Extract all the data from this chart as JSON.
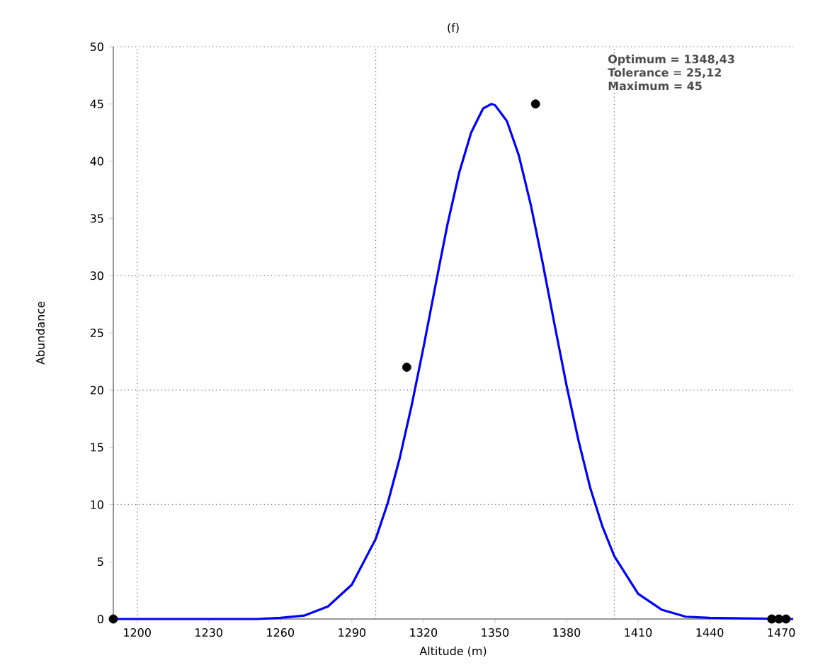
{
  "chart_data": {
    "type": "line",
    "title": "(f)",
    "xlabel": "Altitude (m)",
    "ylabel": "Abundance",
    "xlim": [
      1190,
      1475
    ],
    "ylim": [
      0,
      50
    ],
    "xticks": [
      1200,
      1230,
      1260,
      1290,
      1320,
      1350,
      1380,
      1410,
      1440,
      1470
    ],
    "yticks": [
      0,
      5,
      10,
      15,
      20,
      25,
      30,
      35,
      40,
      45,
      50
    ],
    "annotations": [
      "Optimum = 1348,43",
      "Tolerance = 25,12",
      "Maximum = 45"
    ],
    "ref_lines": [
      {
        "axis": "x",
        "value": 1200,
        "color": "#666666",
        "line_style": "dotted"
      },
      {
        "axis": "x",
        "value": 1300,
        "color": "#666666",
        "line_style": "dotted"
      },
      {
        "axis": "x",
        "value": 1400,
        "color": "#666666",
        "line_style": "dotted"
      },
      {
        "axis": "y",
        "value": 10,
        "color": "#666666",
        "line_style": "dotted"
      },
      {
        "axis": "y",
        "value": 20,
        "color": "#666666",
        "line_style": "dotted"
      },
      {
        "axis": "y",
        "value": 30,
        "color": "#666666",
        "line_style": "dotted"
      }
    ],
    "series": [
      {
        "type": "line",
        "color": "#0000ff",
        "marker": "none",
        "line_style": "solid",
        "x": [
          1190,
          1250,
          1260,
          1270,
          1280,
          1290,
          1300,
          1305,
          1310,
          1315,
          1320,
          1325,
          1330,
          1335,
          1340,
          1345,
          1348.43,
          1350,
          1355,
          1360,
          1365,
          1370,
          1375,
          1380,
          1385,
          1390,
          1395,
          1400,
          1410,
          1420,
          1430,
          1440,
          1475
        ],
        "values": [
          0,
          0,
          0.1,
          0.3,
          1.1,
          3.0,
          7.0,
          10.1,
          14.0,
          18.6,
          23.7,
          29.1,
          34.4,
          39.0,
          42.5,
          44.6,
          45,
          44.9,
          43.5,
          40.5,
          36.2,
          31.1,
          25.7,
          20.4,
          15.6,
          11.4,
          8.1,
          5.5,
          2.2,
          0.8,
          0.2,
          0.1,
          0
        ]
      },
      {
        "type": "scatter",
        "color": "#000000",
        "marker": "circle",
        "x": [
          1190,
          1313,
          1367,
          1466,
          1469,
          1472
        ],
        "values": [
          0,
          22,
          45,
          0,
          0,
          0
        ]
      }
    ]
  }
}
